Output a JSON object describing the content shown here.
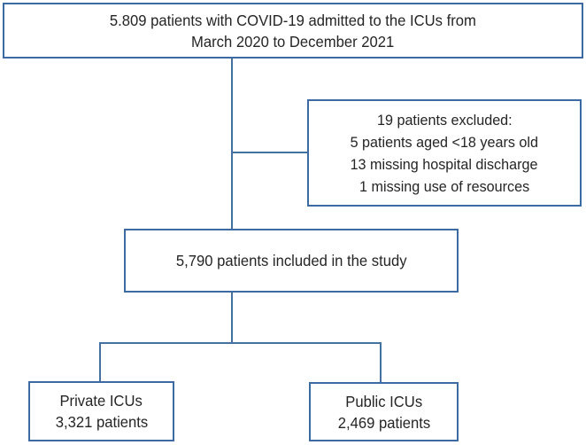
{
  "colors": {
    "box_border": "#3c6ba3",
    "connector_line": "#44719f",
    "text": "#262425",
    "background": "#ffffff"
  },
  "flowchart": {
    "top_box": {
      "line1": "5.809 patients with COVID-19 admitted to the ICUs from",
      "line2": "March 2020 to December 2021"
    },
    "exclusion_box": {
      "line1": "19 patients excluded:",
      "line2": "5 patients aged <18 years old",
      "line3": "13 missing hospital discharge",
      "line4": "1 missing use of resources"
    },
    "included_box": {
      "line1": "5,790 patients included in the study"
    },
    "private_box": {
      "line1": "Private ICUs",
      "line2": "3,321 patients"
    },
    "public_box": {
      "line1": "Public ICUs",
      "line2": "2,469 patients"
    }
  }
}
